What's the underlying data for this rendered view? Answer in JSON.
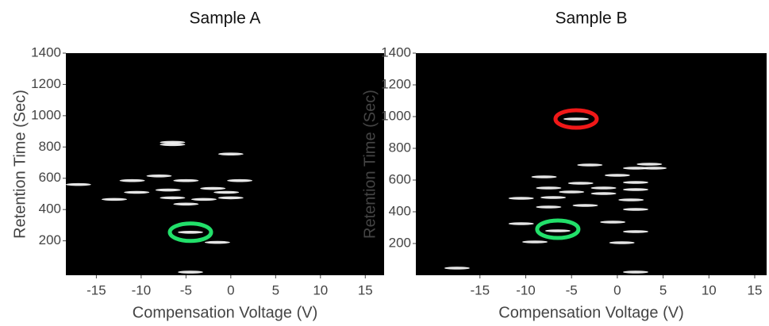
{
  "chart_data": [
    {
      "type": "scatter",
      "title": "Sample A",
      "x_label": "Compensation Voltage (V)",
      "y_label": "Retention Time (Sec)",
      "series": [
        {
          "name": null,
          "color": "#ffffff",
          "x": [
            -6.5,
            -6.5,
            0,
            -8,
            -11,
            -5,
            1,
            -17,
            -7,
            -10.5,
            -2,
            -0.5,
            -13,
            -6.5,
            -3,
            0,
            -5,
            -4.5,
            -1.5,
            -4.5
          ],
          "values": [
            830,
            815,
            755,
            615,
            585,
            585,
            585,
            560,
            525,
            510,
            535,
            510,
            465,
            475,
            465,
            475,
            435,
            255,
            190,
            0
          ]
        }
      ],
      "highlights": [
        {
          "x": -4.5,
          "y": 255,
          "color": "#22e06a"
        }
      ],
      "xlim": [
        -18.4,
        17.1
      ],
      "ylim": [
        -20,
        1400
      ],
      "xticks": [
        -15,
        -10,
        -5,
        0,
        5,
        10,
        15
      ],
      "yticks": [
        200,
        400,
        600,
        800,
        1000,
        1200,
        1400
      ]
    },
    {
      "type": "scatter",
      "title": "Sample B",
      "x_label": "Compensation Voltage (V)",
      "y_label": "Retention Time (Sec)",
      "series": [
        {
          "name": null,
          "color": "#ffffff",
          "x": [
            -4.5,
            -3,
            2,
            3.5,
            4,
            -8,
            0,
            -4,
            2,
            -7.5,
            -1.5,
            -5,
            2,
            -1.5,
            -7,
            -10.5,
            1.5,
            -3.5,
            -7.5,
            2,
            -0.5,
            -10.5,
            -6.5,
            2,
            -9,
            0.5,
            -17.5,
            2
          ],
          "values": [
            985,
            695,
            675,
            700,
            675,
            620,
            630,
            580,
            585,
            550,
            550,
            525,
            540,
            515,
            490,
            485,
            475,
            440,
            430,
            415,
            335,
            325,
            280,
            275,
            210,
            205,
            45,
            20
          ]
        }
      ],
      "highlights": [
        {
          "x": -4.5,
          "y": 985,
          "color": "#f01818"
        },
        {
          "x": -6.5,
          "y": 290,
          "color": "#22e06a"
        }
      ],
      "xlim": [
        -22,
        16.3
      ],
      "ylim": [
        0,
        1400
      ],
      "xticks": [
        -15,
        -10,
        -5,
        0,
        5,
        10,
        15
      ],
      "yticks": [
        200,
        400,
        600,
        800,
        1000,
        1200,
        1400
      ]
    }
  ]
}
